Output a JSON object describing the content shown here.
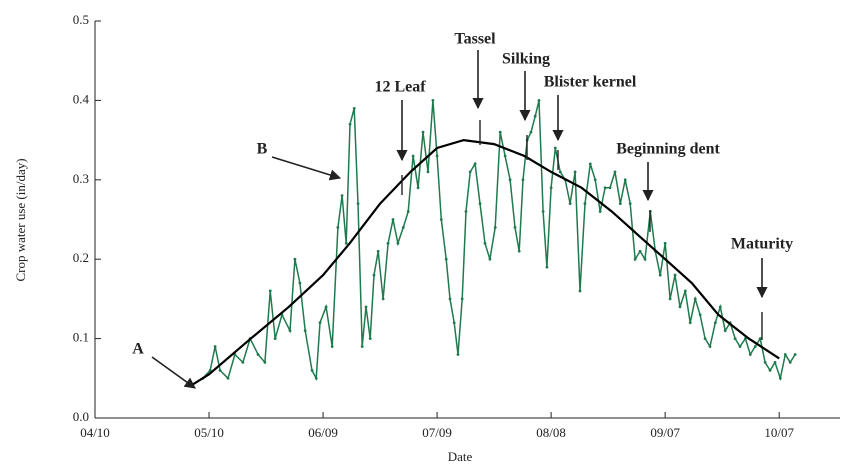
{
  "chart_data": {
    "type": "line",
    "x_label": "Date",
    "y_label": "Crop water use (in/day)",
    "xlim": [
      0,
      196
    ],
    "ylim": [
      0,
      0.5
    ],
    "xticks": [
      {
        "value": 0,
        "label": "04/10"
      },
      {
        "value": 30,
        "label": "05/10"
      },
      {
        "value": 60,
        "label": "06/09"
      },
      {
        "value": 90,
        "label": "07/09"
      },
      {
        "value": 120,
        "label": "08/08"
      },
      {
        "value": 150,
        "label": "09/07"
      },
      {
        "value": 180,
        "label": "10/07"
      }
    ],
    "yticks": [
      {
        "value": 0,
        "label": "0.0"
      },
      0.1,
      0.2,
      0.3,
      0.4,
      0.5
    ],
    "series": [
      {
        "color": "#1f7a4d",
        "x": [
          28.4,
          30.3,
          31.6,
          32.9,
          35.0,
          36.8,
          38.9,
          40.8,
          42.9,
          44.7,
          46.1,
          47.4,
          49.2,
          51.3,
          52.6,
          53.9,
          55.3,
          57.1,
          58.2,
          59.2,
          60.8,
          62.4,
          63.9,
          65.0,
          66.1,
          67.1,
          68.2,
          69.2,
          70.3,
          71.3,
          72.4,
          73.4,
          74.5,
          75.8,
          77.1,
          78.4,
          79.7,
          81.1,
          82.4,
          83.7,
          85.0,
          86.3,
          87.6,
          88.9,
          90.0,
          91.1,
          92.4,
          93.4,
          94.5,
          95.5,
          96.6,
          97.6,
          98.7,
          100.0,
          101.3,
          102.6,
          103.9,
          105.3,
          106.6,
          107.9,
          109.2,
          110.5,
          111.6,
          112.6,
          113.7,
          114.7,
          115.8,
          116.8,
          117.9,
          118.9,
          120.0,
          121.1,
          122.4,
          123.7,
          125.0,
          126.3,
          127.6,
          128.9,
          130.3,
          131.6,
          132.9,
          134.2,
          135.5,
          136.8,
          138.2,
          139.5,
          140.8,
          142.1,
          143.4,
          144.7,
          146.1,
          147.4,
          148.7,
          150.0,
          151.3,
          152.6,
          153.9,
          155.3,
          156.6,
          157.9,
          159.2,
          160.5,
          161.8,
          163.2,
          164.5,
          165.8,
          167.1,
          168.4,
          169.7,
          171.1,
          172.4,
          173.7,
          175.0,
          176.3,
          177.6,
          178.9,
          180.3,
          181.6,
          182.9,
          184.2
        ],
        "values": [
          0.05,
          0.06,
          0.09,
          0.06,
          0.05,
          0.08,
          0.07,
          0.1,
          0.08,
          0.07,
          0.16,
          0.1,
          0.13,
          0.11,
          0.2,
          0.17,
          0.11,
          0.06,
          0.05,
          0.12,
          0.14,
          0.09,
          0.24,
          0.28,
          0.22,
          0.37,
          0.39,
          0.27,
          0.09,
          0.14,
          0.1,
          0.18,
          0.21,
          0.15,
          0.22,
          0.25,
          0.22,
          0.24,
          0.26,
          0.33,
          0.29,
          0.36,
          0.31,
          0.4,
          0.33,
          0.25,
          0.2,
          0.15,
          0.12,
          0.08,
          0.15,
          0.26,
          0.31,
          0.32,
          0.27,
          0.22,
          0.2,
          0.24,
          0.36,
          0.33,
          0.3,
          0.24,
          0.21,
          0.3,
          0.35,
          0.36,
          0.38,
          0.4,
          0.26,
          0.19,
          0.29,
          0.34,
          0.31,
          0.3,
          0.27,
          0.31,
          0.16,
          0.27,
          0.32,
          0.3,
          0.26,
          0.29,
          0.29,
          0.31,
          0.27,
          0.3,
          0.27,
          0.2,
          0.21,
          0.2,
          0.26,
          0.21,
          0.18,
          0.22,
          0.15,
          0.18,
          0.14,
          0.16,
          0.12,
          0.15,
          0.13,
          0.1,
          0.09,
          0.12,
          0.14,
          0.11,
          0.12,
          0.1,
          0.09,
          0.1,
          0.08,
          0.09,
          0.1,
          0.07,
          0.06,
          0.07,
          0.05,
          0.08,
          0.07,
          0.08
        ]
      },
      {
        "color": "#000000",
        "x": [
          25,
          30,
          41,
          51,
          60,
          67,
          75,
          83,
          90,
          97,
          105,
          113,
          120,
          128,
          136,
          143,
          150,
          157,
          164,
          172,
          180
        ],
        "values": [
          0.04,
          0.055,
          0.1,
          0.14,
          0.18,
          0.22,
          0.27,
          0.31,
          0.34,
          0.35,
          0.345,
          0.33,
          0.31,
          0.29,
          0.26,
          0.23,
          0.2,
          0.17,
          0.13,
          0.1,
          0.075
        ]
      }
    ],
    "annotations": [
      "A",
      "B",
      "12 Leaf",
      "Tassel",
      "Silking",
      "Blister kernel",
      "Beginning dent",
      "Maturity"
    ]
  }
}
